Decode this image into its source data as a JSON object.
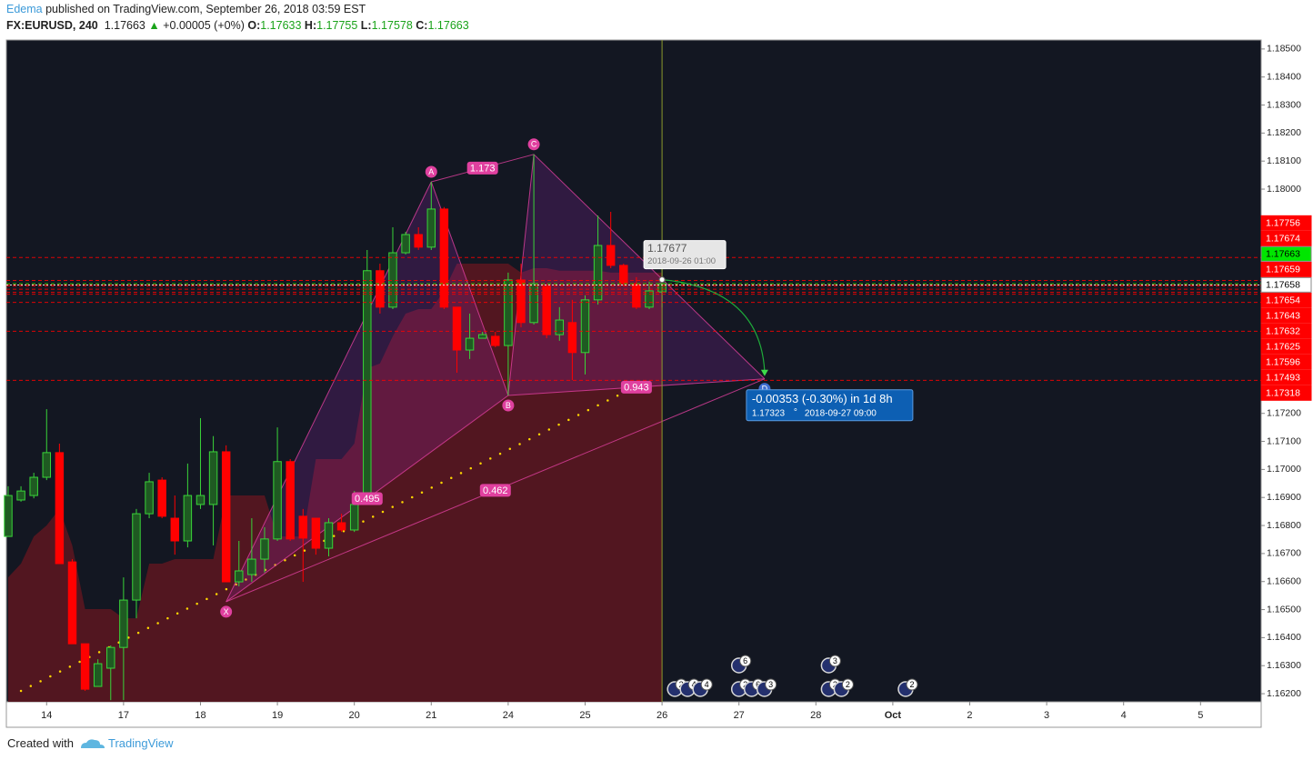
{
  "header": {
    "author": "Edema",
    "published": "published on TradingView.com, September 26, 2018 03:59 EST",
    "symbol": "FX:EURUSD, 240",
    "change": "+0.00005 (+0%)",
    "o": "O:",
    "h": "H:",
    "l": "L:",
    "c": "C:"
  },
  "footer": {
    "created": "Created with",
    "brand": "TradingView"
  },
  "chart_data": {
    "type": "candlestick",
    "up_color": "#39d439",
    "down_color": "#ff0000",
    "background": "#131722",
    "x": [
      0,
      1,
      2,
      3,
      4,
      5,
      6,
      7,
      8,
      9,
      10,
      11,
      12,
      13,
      14,
      15,
      16,
      17,
      18,
      19,
      20,
      21,
      22,
      23,
      24,
      25,
      26,
      27,
      28,
      29,
      30,
      31,
      32,
      33,
      34,
      35,
      36,
      37,
      38,
      39,
      40,
      41,
      42,
      43,
      44,
      45,
      46,
      47,
      48,
      49,
      50,
      51
    ],
    "open": [
      1.16761,
      1.16891,
      1.16907,
      1.16972,
      1.1706,
      1.1667,
      1.16378,
      1.16226,
      1.16291,
      1.16365,
      1.16534,
      1.16842,
      1.16962,
      1.16826,
      1.16745,
      1.16875,
      1.16875,
      1.17063,
      1.16599,
      1.16625,
      1.1668,
      1.16752,
      1.17028,
      1.16833,
      1.16826,
      1.16719,
      1.1681,
      1.16784,
      1.16907,
      1.17709,
      1.17579,
      1.17773,
      1.17838,
      1.17793,
      1.17929,
      1.17579,
      1.17426,
      1.17468,
      1.17475,
      1.17442,
      1.17676,
      1.17524,
      1.17653,
      1.17481,
      1.17524,
      1.17417,
      1.17605,
      1.17799,
      1.17728,
      1.17663,
      1.17579,
      1.17633
    ],
    "high": [
      1.1694,
      1.1694,
      1.16988,
      1.17215,
      1.17092,
      1.1668,
      1.16378,
      1.16323,
      1.16372,
      1.16615,
      1.16859,
      1.16988,
      1.16972,
      1.16907,
      1.17021,
      1.17183,
      1.17119,
      1.17086,
      1.16745,
      1.16826,
      1.16794,
      1.1715,
      1.17037,
      1.16859,
      1.16826,
      1.16826,
      1.16842,
      1.16923,
      1.17783,
      1.17734,
      1.17864,
      1.17848,
      1.17864,
      1.18026,
      1.17936,
      1.17579,
      1.17556,
      1.17491,
      1.17491,
      1.17702,
      1.17734,
      1.18124,
      1.17663,
      1.17579,
      1.17605,
      1.17621,
      1.17906,
      1.17919,
      1.17734,
      1.17686,
      1.1767,
      1.17755
    ],
    "low": [
      1.16761,
      1.16885,
      1.16897,
      1.16962,
      1.16664,
      1.16378,
      1.1621,
      1.16226,
      1.16177,
      1.16177,
      1.16469,
      1.16826,
      1.16826,
      1.16696,
      1.16722,
      1.16859,
      1.16729,
      1.16599,
      1.16583,
      1.16599,
      1.16632,
      1.16745,
      1.16745,
      1.16599,
      1.16696,
      1.1669,
      1.16777,
      1.16777,
      1.16897,
      1.17556,
      1.17572,
      1.17767,
      1.17783,
      1.17783,
      1.17572,
      1.17345,
      1.17394,
      1.17468,
      1.17436,
      1.17264,
      1.17507,
      1.17517,
      1.17468,
      1.17459,
      1.17319,
      1.17339,
      1.17588,
      1.17718,
      1.17653,
      1.17572,
      1.17572,
      1.17578
    ],
    "close": [
      1.16907,
      1.16923,
      1.16972,
      1.1706,
      1.16664,
      1.16378,
      1.16216,
      1.16307,
      1.16365,
      1.16534,
      1.16842,
      1.16956,
      1.16833,
      1.16745,
      1.16907,
      1.16907,
      1.17063,
      1.16599,
      1.16638,
      1.1668,
      1.16752,
      1.17028,
      1.16752,
      1.16755,
      1.16719,
      1.1681,
      1.16784,
      1.16875,
      1.17709,
      1.17579,
      1.17773,
      1.17838,
      1.17793,
      1.17929,
      1.17579,
      1.17426,
      1.17468,
      1.17481,
      1.17442,
      1.17676,
      1.17524,
      1.17663,
      1.17481,
      1.17533,
      1.17417,
      1.17605,
      1.17799,
      1.17728,
      1.17663,
      1.17579,
      1.17637,
      1.17663
    ],
    "cloud": {
      "color": "#5a1620",
      "values": [
        1.16615,
        1.16664,
        1.16761,
        1.168,
        1.16859,
        1.16729,
        1.16502,
        1.16502,
        1.16502,
        1.16469,
        1.16469,
        1.16664,
        1.16664,
        1.1668,
        1.1668,
        1.1668,
        1.1668,
        1.16907,
        1.16907,
        1.16907,
        1.16907,
        1.16761,
        1.16761,
        1.16761,
        1.17037,
        1.17037,
        1.17037,
        1.17092,
        1.17361,
        1.17378,
        1.17475,
        1.17556,
        1.17572,
        1.17572,
        1.17637,
        1.17734,
        1.17734,
        1.17734,
        1.17734,
        1.17734,
        1.17702,
        1.17718,
        1.17718,
        1.17709,
        1.17709,
        1.17709,
        1.17709,
        1.17702,
        1.17702,
        1.17702,
        1.17702,
        1.17702
      ]
    },
    "trend_dots": {
      "color": "#ffd700",
      "x": [
        1,
        48
      ],
      "values": [
        1.1621,
        1.17274
      ]
    },
    "xlim": [
      -0.14,
      97.73
    ],
    "xticks": [
      {
        "value": 3,
        "label": "14"
      },
      {
        "value": 9,
        "label": "17"
      },
      {
        "value": 15,
        "label": "18"
      },
      {
        "value": 21,
        "label": "19"
      },
      {
        "value": 27,
        "label": "20"
      },
      {
        "value": 33,
        "label": "21"
      },
      {
        "value": 39,
        "label": "24"
      },
      {
        "value": 45,
        "label": "25"
      },
      {
        "value": 51,
        "label": "26"
      },
      {
        "value": 57,
        "label": "27"
      },
      {
        "value": 63,
        "label": "28"
      },
      {
        "value": 69,
        "label": "Oct"
      },
      {
        "value": 75,
        "label": "2"
      },
      {
        "value": 81,
        "label": "3"
      },
      {
        "value": 87,
        "label": "4"
      },
      {
        "value": 93,
        "label": "5"
      }
    ],
    "ylim": [
      1.16171,
      1.18532
    ],
    "yticks": [
      {
        "value": 1.185,
        "label": "1.18500"
      },
      {
        "value": 1.184,
        "label": "1.18400"
      },
      {
        "value": 1.183,
        "label": "1.18300"
      },
      {
        "value": 1.182,
        "label": "1.18200"
      },
      {
        "value": 1.181,
        "label": "1.18100"
      },
      {
        "value": 1.18,
        "label": "1.18000"
      },
      {
        "value": 1.172,
        "label": "1.17200"
      },
      {
        "value": 1.171,
        "label": "1.17100"
      },
      {
        "value": 1.17,
        "label": "1.17000"
      },
      {
        "value": 1.169,
        "label": "1.16900"
      },
      {
        "value": 1.168,
        "label": "1.16800"
      },
      {
        "value": 1.167,
        "label": "1.16700"
      },
      {
        "value": 1.166,
        "label": "1.16600"
      },
      {
        "value": 1.165,
        "label": "1.16500"
      },
      {
        "value": 1.164,
        "label": "1.16400"
      },
      {
        "value": 1.163,
        "label": "1.16300"
      },
      {
        "value": 1.162,
        "label": "1.16200"
      }
    ],
    "price_lines": [
      {
        "value": 1.17756,
        "color": "#ff0000"
      },
      {
        "value": 1.17674,
        "color": "#ff0000"
      },
      {
        "value": 1.17663,
        "color": "#00e600"
      },
      {
        "value": 1.17659,
        "color": "#ff0000"
      },
      {
        "value": 1.17658,
        "color": "#ffffff"
      },
      {
        "value": 1.17654,
        "color": "#ff0000"
      },
      {
        "value": 1.17643,
        "color": "#ff0000"
      },
      {
        "value": 1.17632,
        "color": "#ff0000"
      },
      {
        "value": 1.17625,
        "color": "#ff0000"
      },
      {
        "value": 1.17596,
        "color": "#ff0000"
      },
      {
        "value": 1.17493,
        "color": "#ff0000"
      },
      {
        "value": 1.17318,
        "color": "#ff0000"
      }
    ],
    "pattern": {
      "color": "#e0409f",
      "points": [
        {
          "label": "X",
          "x": 17,
          "price": 1.16528
        },
        {
          "label": "A",
          "x": 33,
          "price": 1.18026
        },
        {
          "label": "B",
          "x": 39,
          "price": 1.17264
        },
        {
          "label": "C",
          "x": 41,
          "price": 1.18124
        },
        {
          "label": "D",
          "x": 59,
          "price": 1.17323
        }
      ],
      "ratios": [
        1.173,
        0.943,
        0.495,
        0.462
      ]
    },
    "crosshair": {
      "price": 1.17677,
      "time": "2018-09-26 01:00"
    },
    "projection": {
      "text": "-0.00353 (-0.30%) in 1d 8h",
      "degree": "°",
      "time": "2018-09-27  09:00"
    },
    "events": [
      {
        "x": 52,
        "labels": [
          2,
          4,
          4
        ]
      },
      {
        "x": 57,
        "labels": [
          2,
          6,
          3
        ]
      },
      {
        "x": 57,
        "labels": [
          6
        ]
      },
      {
        "x": 64,
        "labels": [
          2,
          2
        ]
      },
      {
        "x": 64,
        "labels": [
          3
        ]
      },
      {
        "x": 70,
        "labels": [
          2
        ]
      }
    ]
  }
}
